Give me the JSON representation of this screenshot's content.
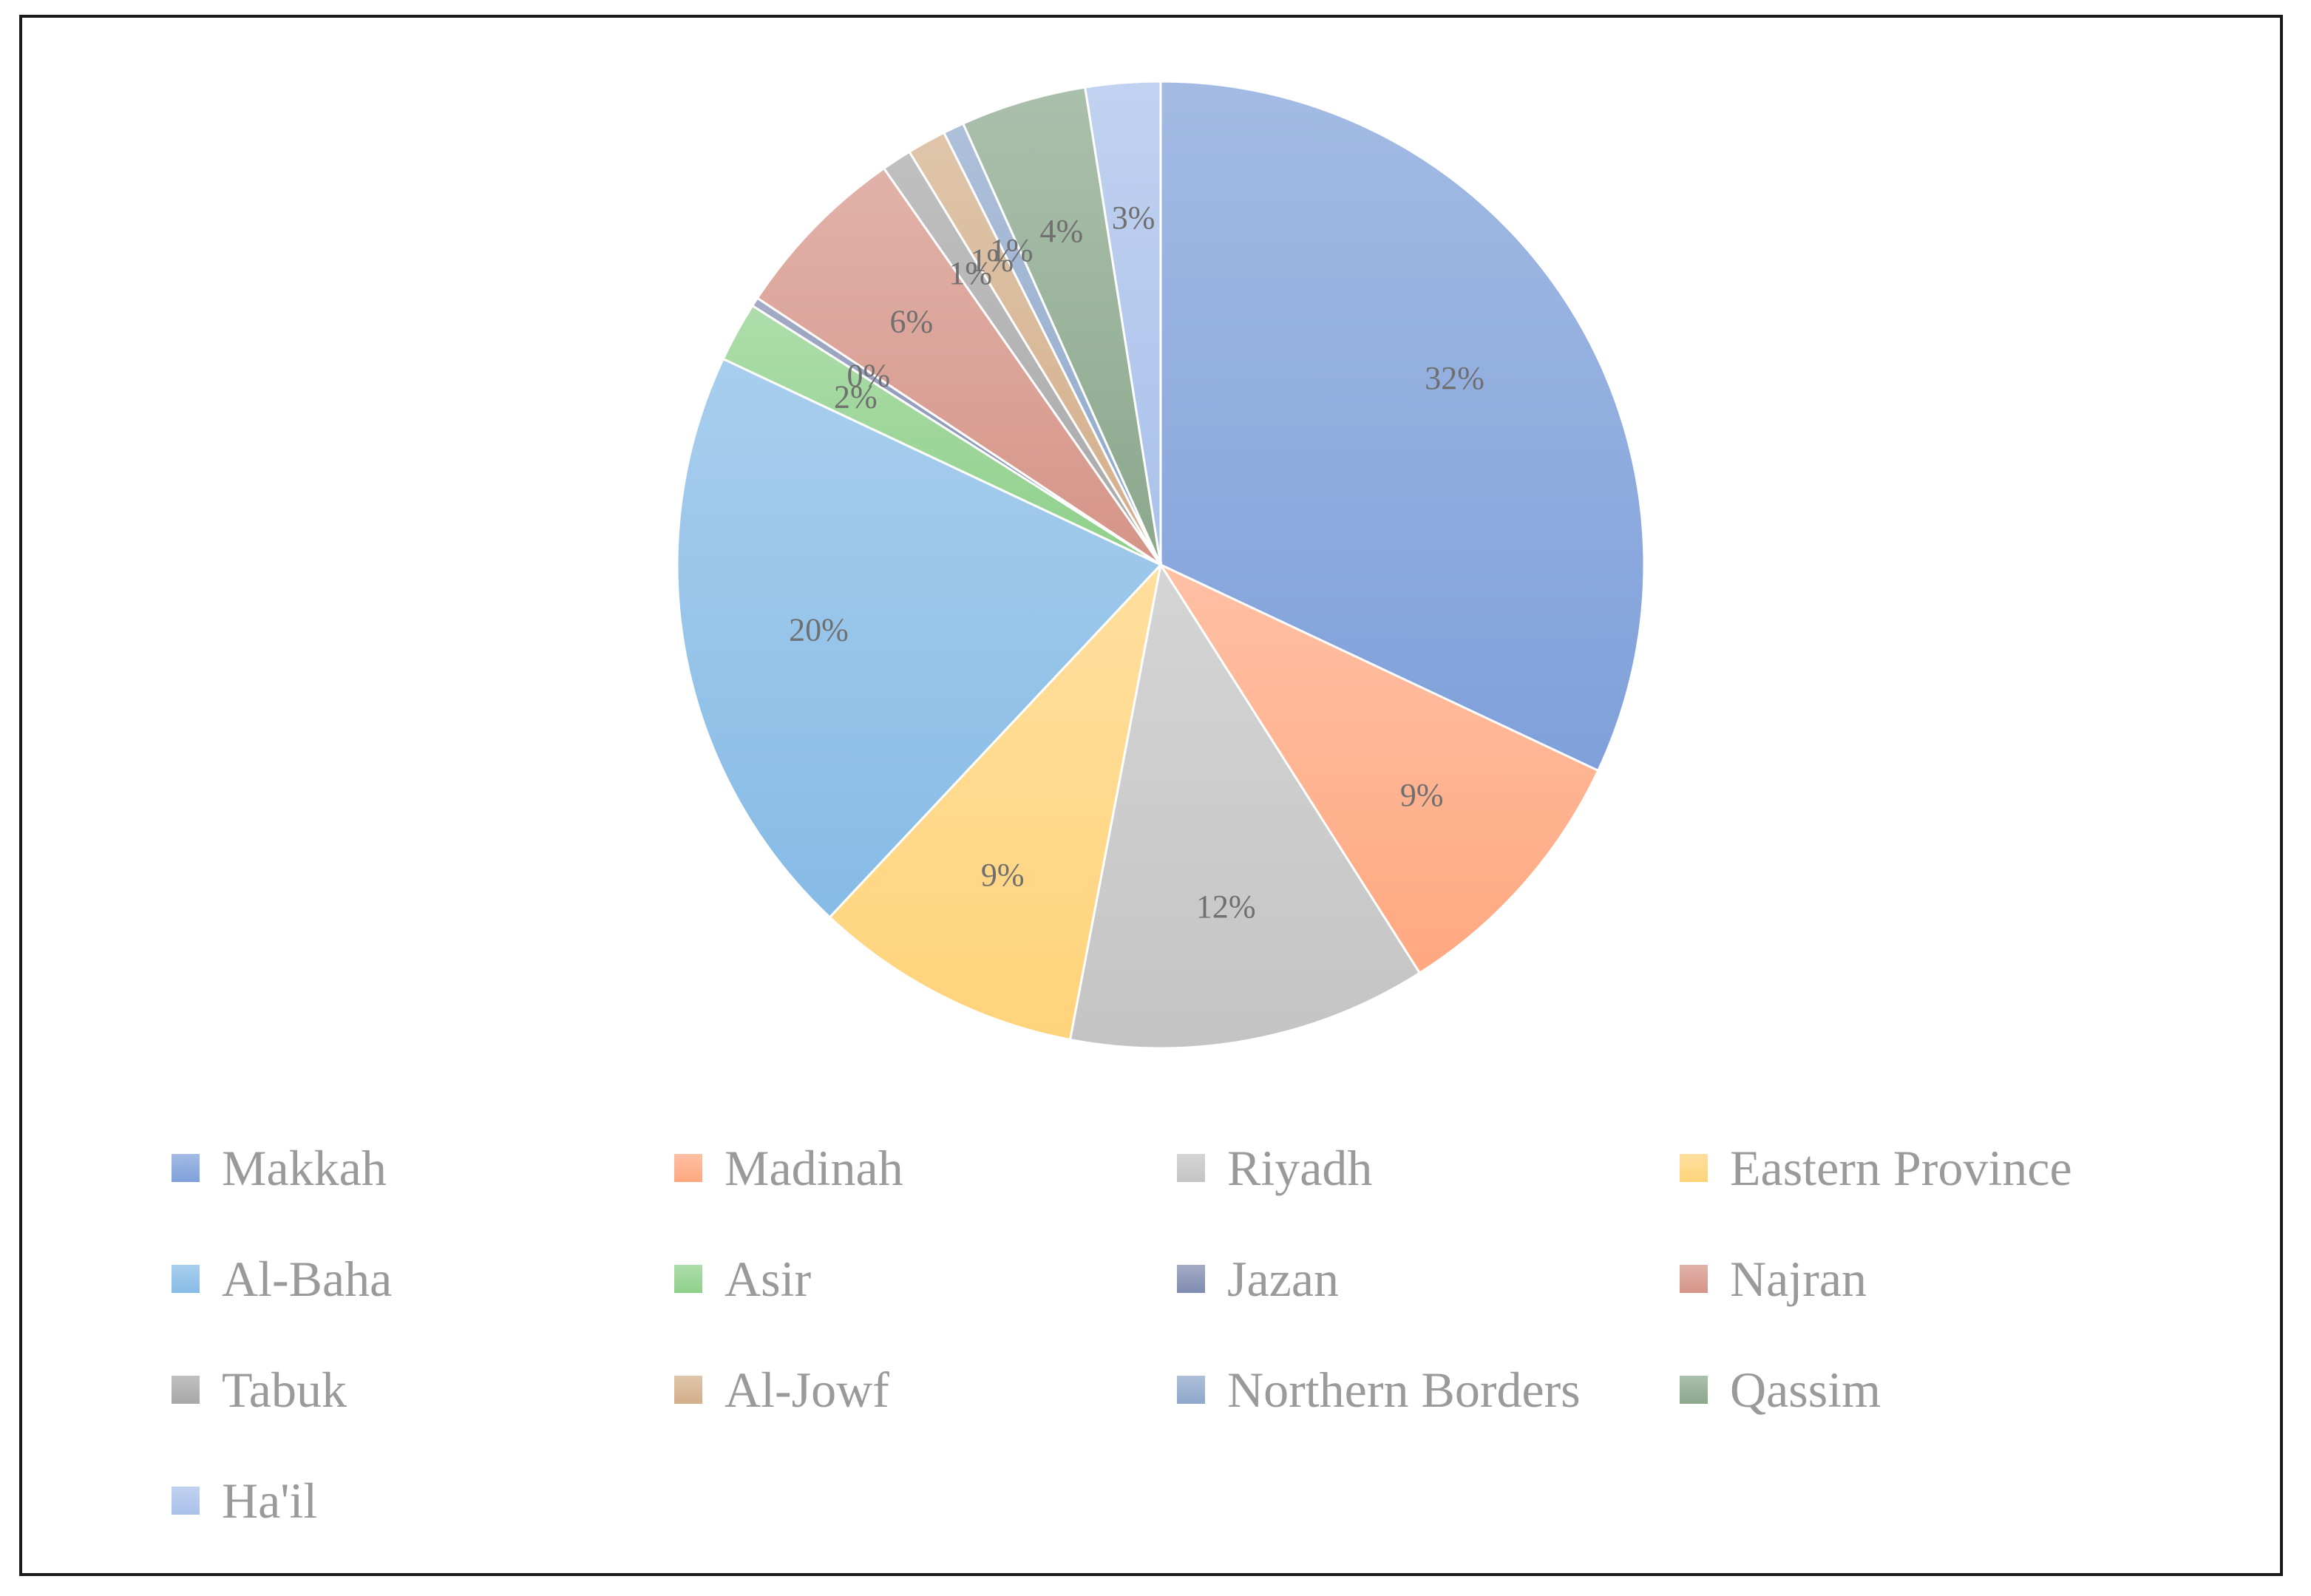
{
  "chart_data": {
    "type": "pie",
    "title": "",
    "start_angle_deg": 0,
    "direction": "clockwise",
    "legend_position": "bottom",
    "slices": [
      {
        "name": "Makkah",
        "value": 32,
        "label": "32%",
        "color": "#7FA0DA"
      },
      {
        "name": "Madinah",
        "value": 9,
        "label": "9%",
        "color": "#FFA880"
      },
      {
        "name": "Riyadh",
        "value": 12,
        "label": "12%",
        "color": "#C4C4C4"
      },
      {
        "name": "Eastern Province",
        "value": 9,
        "label": "9%",
        "color": "#FFD37A"
      },
      {
        "name": "Al-Baha",
        "value": 20,
        "label": "20%",
        "color": "#86BBE6"
      },
      {
        "name": "Asir",
        "value": 2,
        "label": "2%",
        "color": "#8ED08A"
      },
      {
        "name": "Jazan",
        "value": 0.3,
        "label": "0%",
        "color": "#7F8BAF"
      },
      {
        "name": "Najran",
        "value": 6,
        "label": "6%",
        "color": "#D69488"
      },
      {
        "name": "Tabuk",
        "value": 1,
        "label": "1%",
        "color": "#A8A8A8"
      },
      {
        "name": "Al-Jowf",
        "value": 1.3,
        "label": "1%",
        "color": "#D3AE8A"
      },
      {
        "name": "Northern Borders",
        "value": 0.7,
        "label": "1%",
        "color": "#8EA8CB"
      },
      {
        "name": "Qassim",
        "value": 4.2,
        "label": "4%",
        "color": "#8BA78C"
      },
      {
        "name": "Ha'il",
        "value": 2.5,
        "label": "3%",
        "color": "#A9C1EA"
      }
    ]
  }
}
